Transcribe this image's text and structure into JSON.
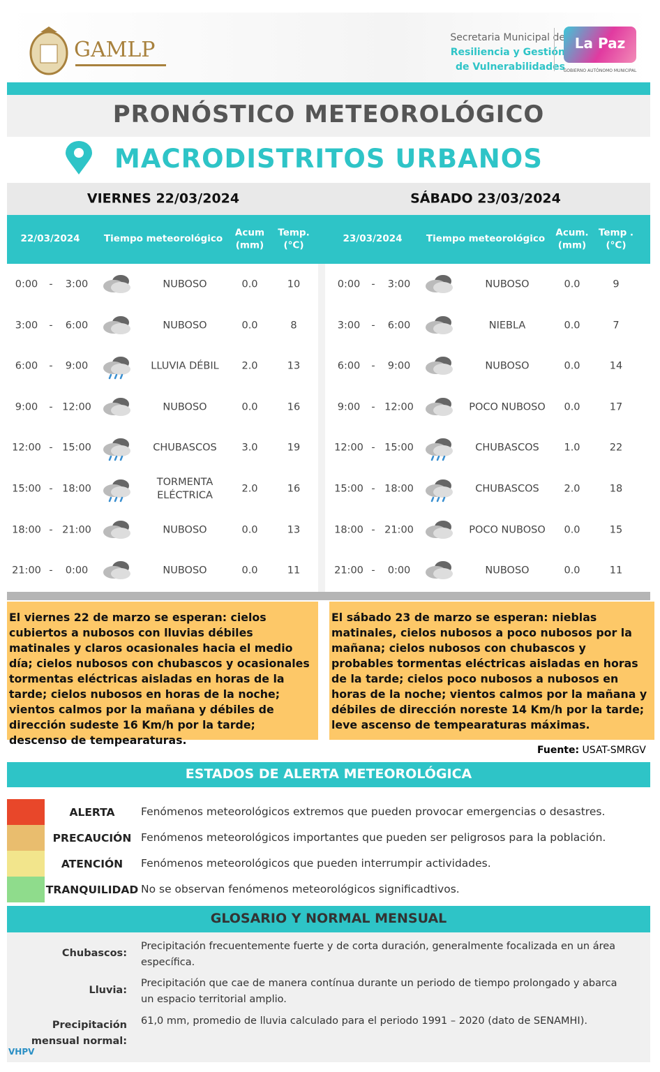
{
  "header": {
    "logo_text": "GAMLP",
    "secretaria": [
      "Secretaria Municipal de",
      "Resiliencia y Gestión",
      "de Vulnerabilidades"
    ],
    "city_logo": "La Paz",
    "city_caption": "GOBIERNO AUTÓNOMO MUNICIPAL"
  },
  "title": "PRONÓSTICO METEOROLÓGICO",
  "subtitle": "MACRODISTRITOS URBANOS",
  "days": [
    {
      "heading": "VIERNES 22/03/2024",
      "separator": "-",
      "columns": [
        "22/03/2024",
        "Tiempo meteorológico",
        "Acum\n(mm)",
        "Temp.\n(°C)"
      ],
      "rows": [
        [
          "0:00",
          "3:00",
          "NUBOSO",
          "0.0",
          10
        ],
        [
          "3:00",
          "6:00",
          "NUBOSO",
          "0.0",
          8
        ],
        [
          "6:00",
          "9:00",
          "LLUVIA DÉBIL",
          "2.0",
          13
        ],
        [
          "9:00",
          "12:00",
          "NUBOSO",
          "0.0",
          16
        ],
        [
          "12:00",
          "15:00",
          "CHUBASCOS",
          "3.0",
          19
        ],
        [
          "15:00",
          "18:00",
          "TORMENTA ELÉCTRICA",
          "2.0",
          16
        ],
        [
          "18:00",
          "21:00",
          "NUBOSO",
          "0.0",
          13
        ],
        [
          "21:00",
          "0:00",
          "NUBOSO",
          "0.0",
          11
        ]
      ],
      "summary": "El viernes 22 de marzo se esperan: cielos cubiertos a nubosos con lluvias débiles matinales y claros ocasionales hacia el medio día; cielos nubosos con chubascos y ocasionales tormentas eléctricas aisladas en horas de la tarde; cielos nubosos en horas de la noche; vientos calmos por la mañana y débiles de dirección sudeste 16 Km/h por la tarde; descenso de tempearaturas."
    },
    {
      "heading": "SÁBADO 23/03/2024",
      "separator": "-",
      "columns": [
        "23/03/2024",
        "Tiempo   meteorológico",
        "Acum.\n(mm)",
        "Temp .\n(°C)"
      ],
      "rows": [
        [
          "0:00",
          "3:00",
          "NUBOSO",
          "0.0",
          9
        ],
        [
          "3:00",
          "6:00",
          "NIEBLA",
          "0.0",
          7
        ],
        [
          "6:00",
          "9:00",
          "NUBOSO",
          "0.0",
          14
        ],
        [
          "9:00",
          "12:00",
          "POCO NUBOSO",
          "0.0",
          17
        ],
        [
          "12:00",
          "15:00",
          "CHUBASCOS",
          "1.0",
          22
        ],
        [
          "15:00",
          "18:00",
          "CHUBASCOS",
          "2.0",
          18
        ],
        [
          "18:00",
          "21:00",
          "POCO NUBOSO",
          "0.0",
          15
        ],
        [
          "21:00",
          "0:00",
          "NUBOSO",
          "0.0",
          11
        ]
      ],
      "summary": "El sábado 23 de marzo se esperan: nieblas matinales, cielos nubosos a poco nubosos por la mañana; cielos nubosos con chubascos y probables tormentas eléctricas aisladas en horas de la tarde; cielos poco nubosos a nubosos en horas de la noche; vientos calmos por la mañana y débiles de dirección noreste 14 Km/h por la tarde; leve ascenso de tempearaturas máximas."
    }
  ],
  "source": {
    "label": "Fuente:",
    "value": "USAT-SMRGV"
  },
  "alerts": {
    "title": "ESTADOS DE ALERTA METEOROLÓGICA",
    "levels": [
      {
        "name": "ALERTA",
        "color": "#e8472a",
        "description": "Fenómenos meteorológicos extremos que pueden provocar emergencias o desastres."
      },
      {
        "name": "PRECAUCIÓN",
        "color": "#e9bd6e",
        "description": "Fenómenos meteorológicos importantes que pueden ser peligrosos para la población."
      },
      {
        "name": "ATENCIÓN",
        "color": "#f2e58c",
        "description": "Fenómenos meteorológicos que pueden interrumpir actividades."
      },
      {
        "name": "TRANQUILIDAD",
        "color": "#8fdc8c",
        "description": "No se observan fenómenos meteorológicos significadtivos."
      }
    ]
  },
  "glossary": {
    "title": "GLOSARIO Y NORMAL MENSUAL",
    "items": [
      {
        "term": "Chubascos:",
        "definition": "Precipitación frecuentemente fuerte y de corta duración, generalmente focalizada en un área específica."
      },
      {
        "term": "Lluvia:",
        "definition": "Precipitación que cae de manera contínua durante un periodo de tiempo prolongado y abarca un espacio territorial amplio."
      },
      {
        "term": "Precipitación mensual normal:",
        "definition": "61,0 mm, promedio de lluvia calculado para el periodo 1991 – 2020 (dato de SENAMHI)."
      }
    ]
  },
  "footer": "VHPV"
}
